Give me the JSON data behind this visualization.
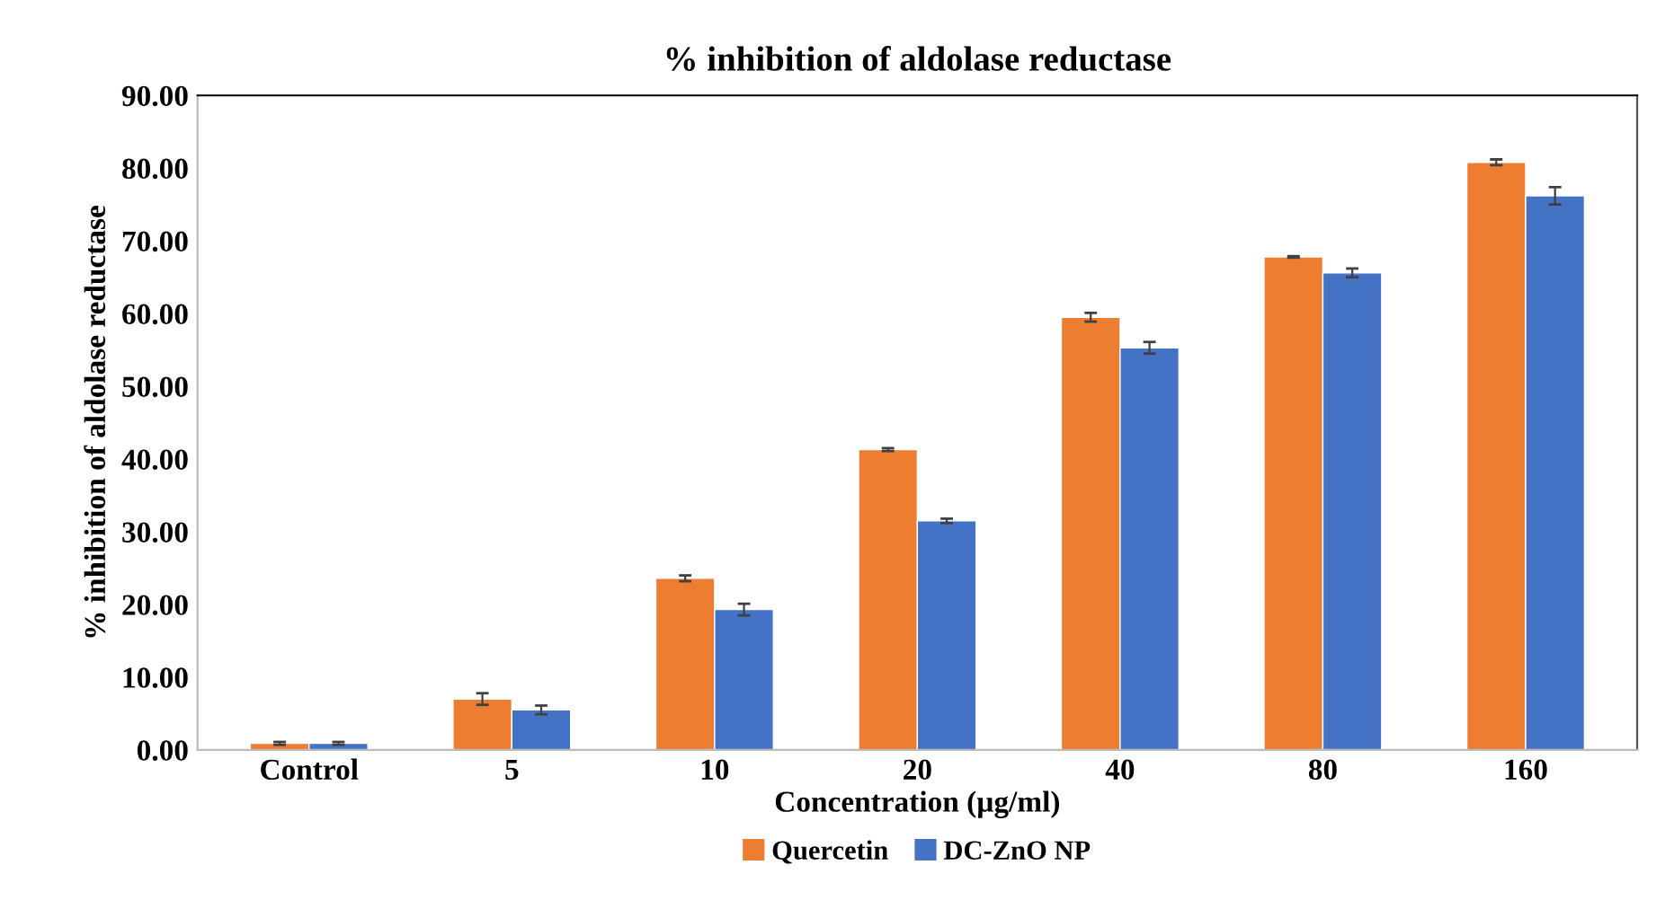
{
  "chart_data": {
    "type": "bar",
    "title": "% inhibition of aldolase reductase",
    "xlabel": "Concentration (µg/ml)",
    "ylabel": "% inhibition of aldolase reductase",
    "categories": [
      "Control",
      "5",
      "10",
      "20",
      "40",
      "80",
      "160"
    ],
    "series": [
      {
        "name": "Quercetin",
        "color": "#ed7d31",
        "values": [
          0.9,
          7.0,
          23.6,
          41.3,
          59.5,
          67.8,
          80.8
        ],
        "errors": [
          0.2,
          0.8,
          0.4,
          0.2,
          0.6,
          0.1,
          0.4
        ]
      },
      {
        "name": "DC-ZnO NP",
        "color": "#4472c4",
        "values": [
          0.9,
          5.5,
          19.3,
          31.5,
          55.3,
          65.6,
          76.2
        ],
        "errors": [
          0.2,
          0.6,
          0.8,
          0.3,
          0.8,
          0.6,
          1.2
        ]
      }
    ],
    "ylim": [
      0,
      90
    ],
    "yticks": [
      {
        "value": 0,
        "label": "0.00"
      },
      {
        "value": 10,
        "label": "10.00"
      },
      {
        "value": 20,
        "label": "20.00"
      },
      {
        "value": 30,
        "label": "30.00"
      },
      {
        "value": 40,
        "label": "40.00"
      },
      {
        "value": 50,
        "label": "50.00"
      },
      {
        "value": 60,
        "label": "60.00"
      },
      {
        "value": 70,
        "label": "70.00"
      },
      {
        "value": 80,
        "label": "80.00"
      },
      {
        "value": 90,
        "label": "90.00"
      }
    ],
    "grid": false,
    "legend": "bottom"
  }
}
